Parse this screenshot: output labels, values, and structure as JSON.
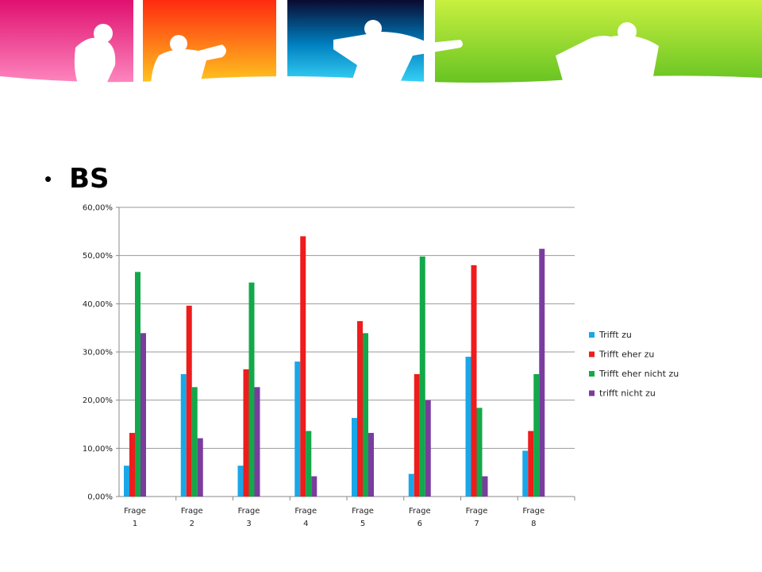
{
  "slide": {
    "title": "BS"
  },
  "colors": {
    "banner": [
      "#ff3b8a",
      "#ff7a1a",
      "#00a9e0",
      "#9be02b"
    ]
  },
  "chart_data": {
    "type": "bar",
    "categories": [
      [
        "Frage",
        "1"
      ],
      [
        "Frage",
        "2"
      ],
      [
        "Frage",
        "3"
      ],
      [
        "Frage",
        "4"
      ],
      [
        "Frage",
        "5"
      ],
      [
        "Frage",
        "6"
      ],
      [
        "Frage",
        "7"
      ],
      [
        "Frage",
        "8"
      ]
    ],
    "y_ticks": [
      "0,00%",
      "10,00%",
      "20,00%",
      "30,00%",
      "40,00%",
      "50,00%",
      "60,00%"
    ],
    "ylim": [
      0,
      60
    ],
    "grid": true,
    "legend_position": "right",
    "series": [
      {
        "name": "Trifft zu",
        "color": "#1aa7e8",
        "values": [
          6.4,
          25.4,
          6.4,
          28.0,
          16.3,
          4.7,
          29.0,
          9.5
        ]
      },
      {
        "name": "Trifft eher zu",
        "color": "#ee1c1c",
        "values": [
          13.2,
          39.6,
          26.4,
          54.0,
          36.4,
          25.4,
          48.0,
          13.6
        ]
      },
      {
        "name": "Trifft eher nicht zu",
        "color": "#13a84a",
        "values": [
          46.6,
          22.7,
          44.4,
          13.6,
          33.9,
          49.8,
          18.4,
          25.4
        ]
      },
      {
        "name": "trifft nicht zu",
        "color": "#7a3d9e",
        "values": [
          33.9,
          12.1,
          22.7,
          4.2,
          13.2,
          20.0,
          4.2,
          51.4
        ]
      }
    ]
  }
}
